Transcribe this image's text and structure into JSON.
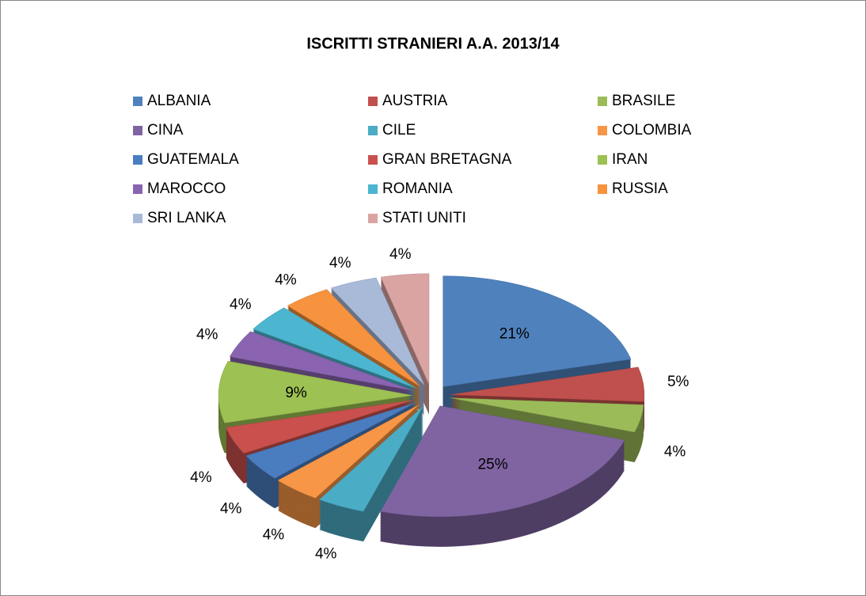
{
  "chart_data": {
    "type": "pie",
    "title": "ISCRITTI STRANIERI A.A. 2013/14",
    "categories": [
      "ALBANIA",
      "AUSTRIA",
      "BRASILE",
      "CINA",
      "CILE",
      "COLOMBIA",
      "GUATEMALA",
      "GRAN BRETAGNA",
      "IRAN",
      "MAROCCO",
      "ROMANIA",
      "RUSSIA",
      "SRI LANKA",
      "STATI UNITI"
    ],
    "values": [
      21,
      5,
      4,
      25,
      4,
      4,
      4,
      4,
      9,
      4,
      4,
      4,
      4,
      4
    ],
    "value_labels": [
      "21%",
      "5%",
      "4%",
      "25%",
      "4%",
      "4%",
      "4%",
      "4%",
      "9%",
      "4%",
      "4%",
      "4%",
      "4%",
      "4%"
    ],
    "colors": [
      "#4F81BD",
      "#C0504D",
      "#9BBB59",
      "#8064A2",
      "#4BACC6",
      "#F79646",
      "#4A7CC0",
      "#C9504D",
      "#9DC152",
      "#8A64B0",
      "#4CB5CF",
      "#F7923E",
      "#A9B9D8",
      "#DAA4A3"
    ],
    "legend": "top"
  }
}
